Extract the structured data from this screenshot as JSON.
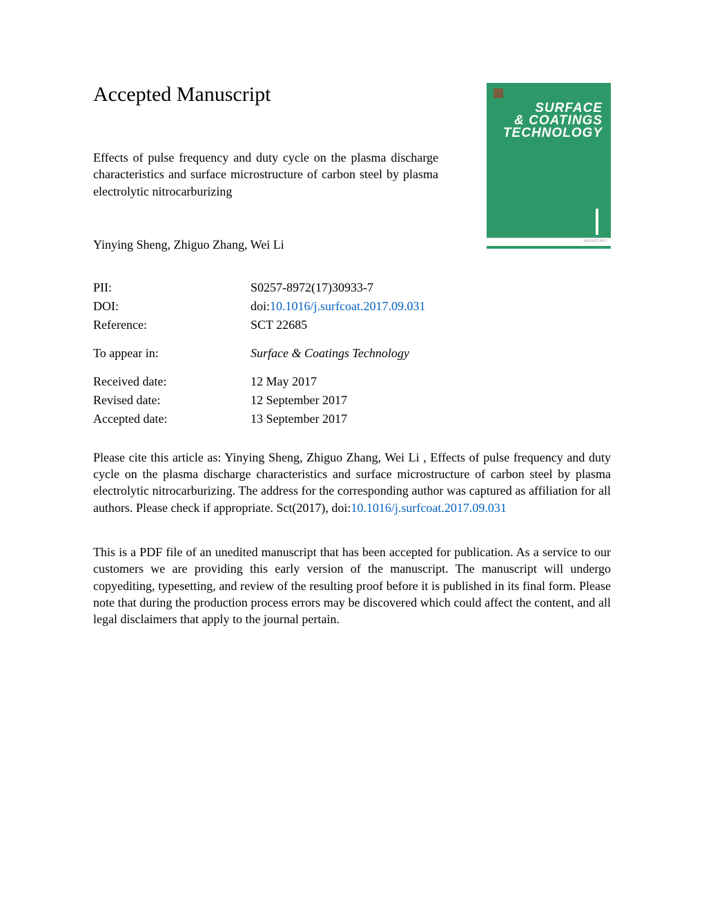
{
  "heading": "Accepted Manuscript",
  "article_title": "Effects of pulse frequency and duty cycle on the plasma discharge characteristics and surface microstructure of carbon steel by plasma electrolytic nitrocarburizing",
  "authors": "Yinying Sheng, Zhiguo Zhang, Wei Li",
  "journal_cover": {
    "title_line1": "SURFACE",
    "title_line2": "& COATINGS",
    "title_line3": "TECHNOLOGY",
    "issn_text": "ISSN 0257-8972"
  },
  "metadata": {
    "pii_label": "PII:",
    "pii_value": "S0257-8972(17)30933-7",
    "doi_label": "DOI:",
    "doi_prefix": "doi:",
    "doi_link": "10.1016/j.surfcoat.2017.09.031",
    "reference_label": "Reference:",
    "reference_value": "SCT 22685",
    "appear_label": "To appear in:",
    "appear_value": "Surface & Coatings Technology",
    "received_label": "Received date:",
    "received_value": "12 May 2017",
    "revised_label": "Revised date:",
    "revised_value": "12 September 2017",
    "accepted_label": "Accepted date:",
    "accepted_value": "13 September 2017"
  },
  "citation": {
    "text_before_link": "Please cite this article as: Yinying Sheng, Zhiguo Zhang, Wei Li , Effects of pulse frequency and duty cycle on the plasma discharge characteristics and surface microstructure of carbon steel by plasma electrolytic nitrocarburizing. The address for the corresponding author was captured as affiliation for all authors. Please check if appropriate. Sct(2017), doi:",
    "link": "10.1016/j.surfcoat.2017.09.031"
  },
  "disclaimer": "This is a PDF file of an unedited manuscript that has been accepted for publication. As a service to our customers we are providing this early version of the manuscript. The manuscript will undergo copyediting, typesetting, and review of the resulting proof before it is published in its final form. Please note that during the production process errors may be discovered which could affect the content, and all legal disclaimers that apply to the journal pertain."
}
